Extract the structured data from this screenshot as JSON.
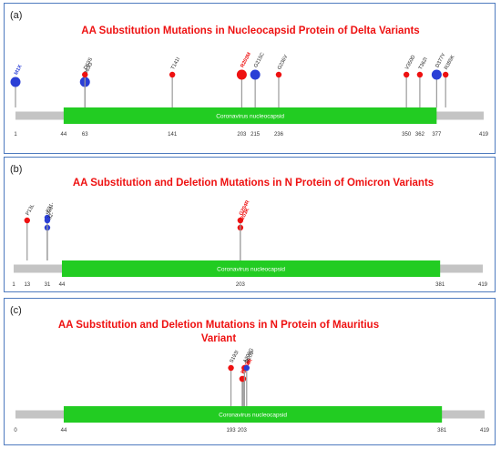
{
  "colors": {
    "red": "#ee1111",
    "blue": "#2a3fd6",
    "domain": "#22cc22",
    "backbone": "#c4c4c4",
    "stem": "#9a9a9a",
    "border": "#4f7bbf"
  },
  "panels": [
    {
      "id": "a",
      "label": "(a)",
      "title_lines": [
        "AA Substitution Mutations in Nucleocapsid Protein of Delta Variants"
      ],
      "length": 419,
      "domain": {
        "name": "Coronavirus nucleocapsid",
        "start": 44,
        "end": 377
      },
      "ticks": [
        "1",
        "44",
        "63",
        "141",
        "203",
        "215",
        "236",
        "350",
        "362",
        "377",
        "419"
      ],
      "mutations": [
        {
          "pos": 1,
          "label": "M1X",
          "color": "blue",
          "size": "large",
          "tier": 2,
          "bold": true
        },
        {
          "pos": 63,
          "label": "D63G",
          "color": "blue",
          "size": "large",
          "tier": 2,
          "bold": false
        },
        {
          "pos": 63,
          "label": "D63S",
          "color": "red",
          "size": "small",
          "tier": 1,
          "bold": false
        },
        {
          "pos": 141,
          "label": "T141I",
          "color": "red",
          "size": "small",
          "tier": 1,
          "bold": false
        },
        {
          "pos": 203,
          "label": "R203M",
          "color": "red",
          "size": "large",
          "tier": 1,
          "bold": true
        },
        {
          "pos": 215,
          "label": "G215C",
          "color": "blue",
          "size": "large",
          "tier": 1,
          "bold": false
        },
        {
          "pos": 236,
          "label": "G236V",
          "color": "red",
          "size": "small",
          "tier": 1,
          "bold": false
        },
        {
          "pos": 350,
          "label": "V350D",
          "color": "red",
          "size": "small",
          "tier": 1,
          "bold": false
        },
        {
          "pos": 362,
          "label": "T362I",
          "color": "red",
          "size": "small",
          "tier": 1,
          "bold": false
        },
        {
          "pos": 377,
          "label": "D377Y",
          "color": "blue",
          "size": "large",
          "tier": 1,
          "bold": false
        },
        {
          "pos": 385,
          "label": "R385K",
          "color": "red",
          "size": "small",
          "tier": 1,
          "bold": false
        }
      ]
    },
    {
      "id": "b",
      "label": "(b)",
      "title_lines": [
        "AA Substitution and Deletion Mutations in N Protein of Omicron Variants"
      ],
      "length": 419,
      "domain": {
        "name": "Coronavirus nucleocapsid",
        "start": 44,
        "end": 381
      },
      "ticks": [
        "1",
        "13",
        "31",
        "44",
        "203",
        "381",
        "419"
      ],
      "mutations": [
        {
          "pos": 13,
          "label": "P13L",
          "color": "red",
          "size": "small",
          "tier": 1,
          "bold": false
        },
        {
          "pos": 31,
          "label": "E31-",
          "color": "blue",
          "size": "small",
          "tier": 3,
          "bold": false
        },
        {
          "pos": 31,
          "label": "R32-",
          "color": "blue",
          "size": "small",
          "tier": 2,
          "bold": false
        },
        {
          "pos": 31,
          "label": "S33-",
          "color": "blue",
          "size": "small",
          "tier": 1,
          "bold": false
        },
        {
          "pos": 203,
          "label": "R203K",
          "color": "red",
          "size": "small",
          "tier": 2,
          "bold": true
        },
        {
          "pos": 203,
          "label": "G204R",
          "color": "red",
          "size": "small",
          "tier": 1,
          "bold": true
        }
      ]
    },
    {
      "id": "c",
      "label": "(c)",
      "title_lines": [
        "AA Substitution and Deletion Mutations in N Protein of Mauritius",
        "Variant"
      ],
      "length": 419,
      "domain": {
        "name": "Coronavirus nucleocapsid",
        "start": 44,
        "end": 381
      },
      "ticks": [
        "0",
        "44",
        "193",
        "203",
        "381",
        "419"
      ],
      "mutations": [
        {
          "pos": 193,
          "label": "S193I",
          "color": "red",
          "size": "small",
          "tier": 1,
          "bold": false
        },
        {
          "pos": 203,
          "label": "R203K",
          "color": "red",
          "size": "small",
          "tier": 2,
          "bold": true
        },
        {
          "pos": 204,
          "label": "G204R",
          "color": "red",
          "size": "small",
          "tier": 2,
          "bold": true
        },
        {
          "pos": 205,
          "label": "A208G",
          "color": "red",
          "size": "small",
          "tier": 1,
          "bold": false
        },
        {
          "pos": 207,
          "label": "R209-",
          "color": "blue",
          "size": "small",
          "tier": 1,
          "bold": false
        }
      ]
    }
  ]
}
